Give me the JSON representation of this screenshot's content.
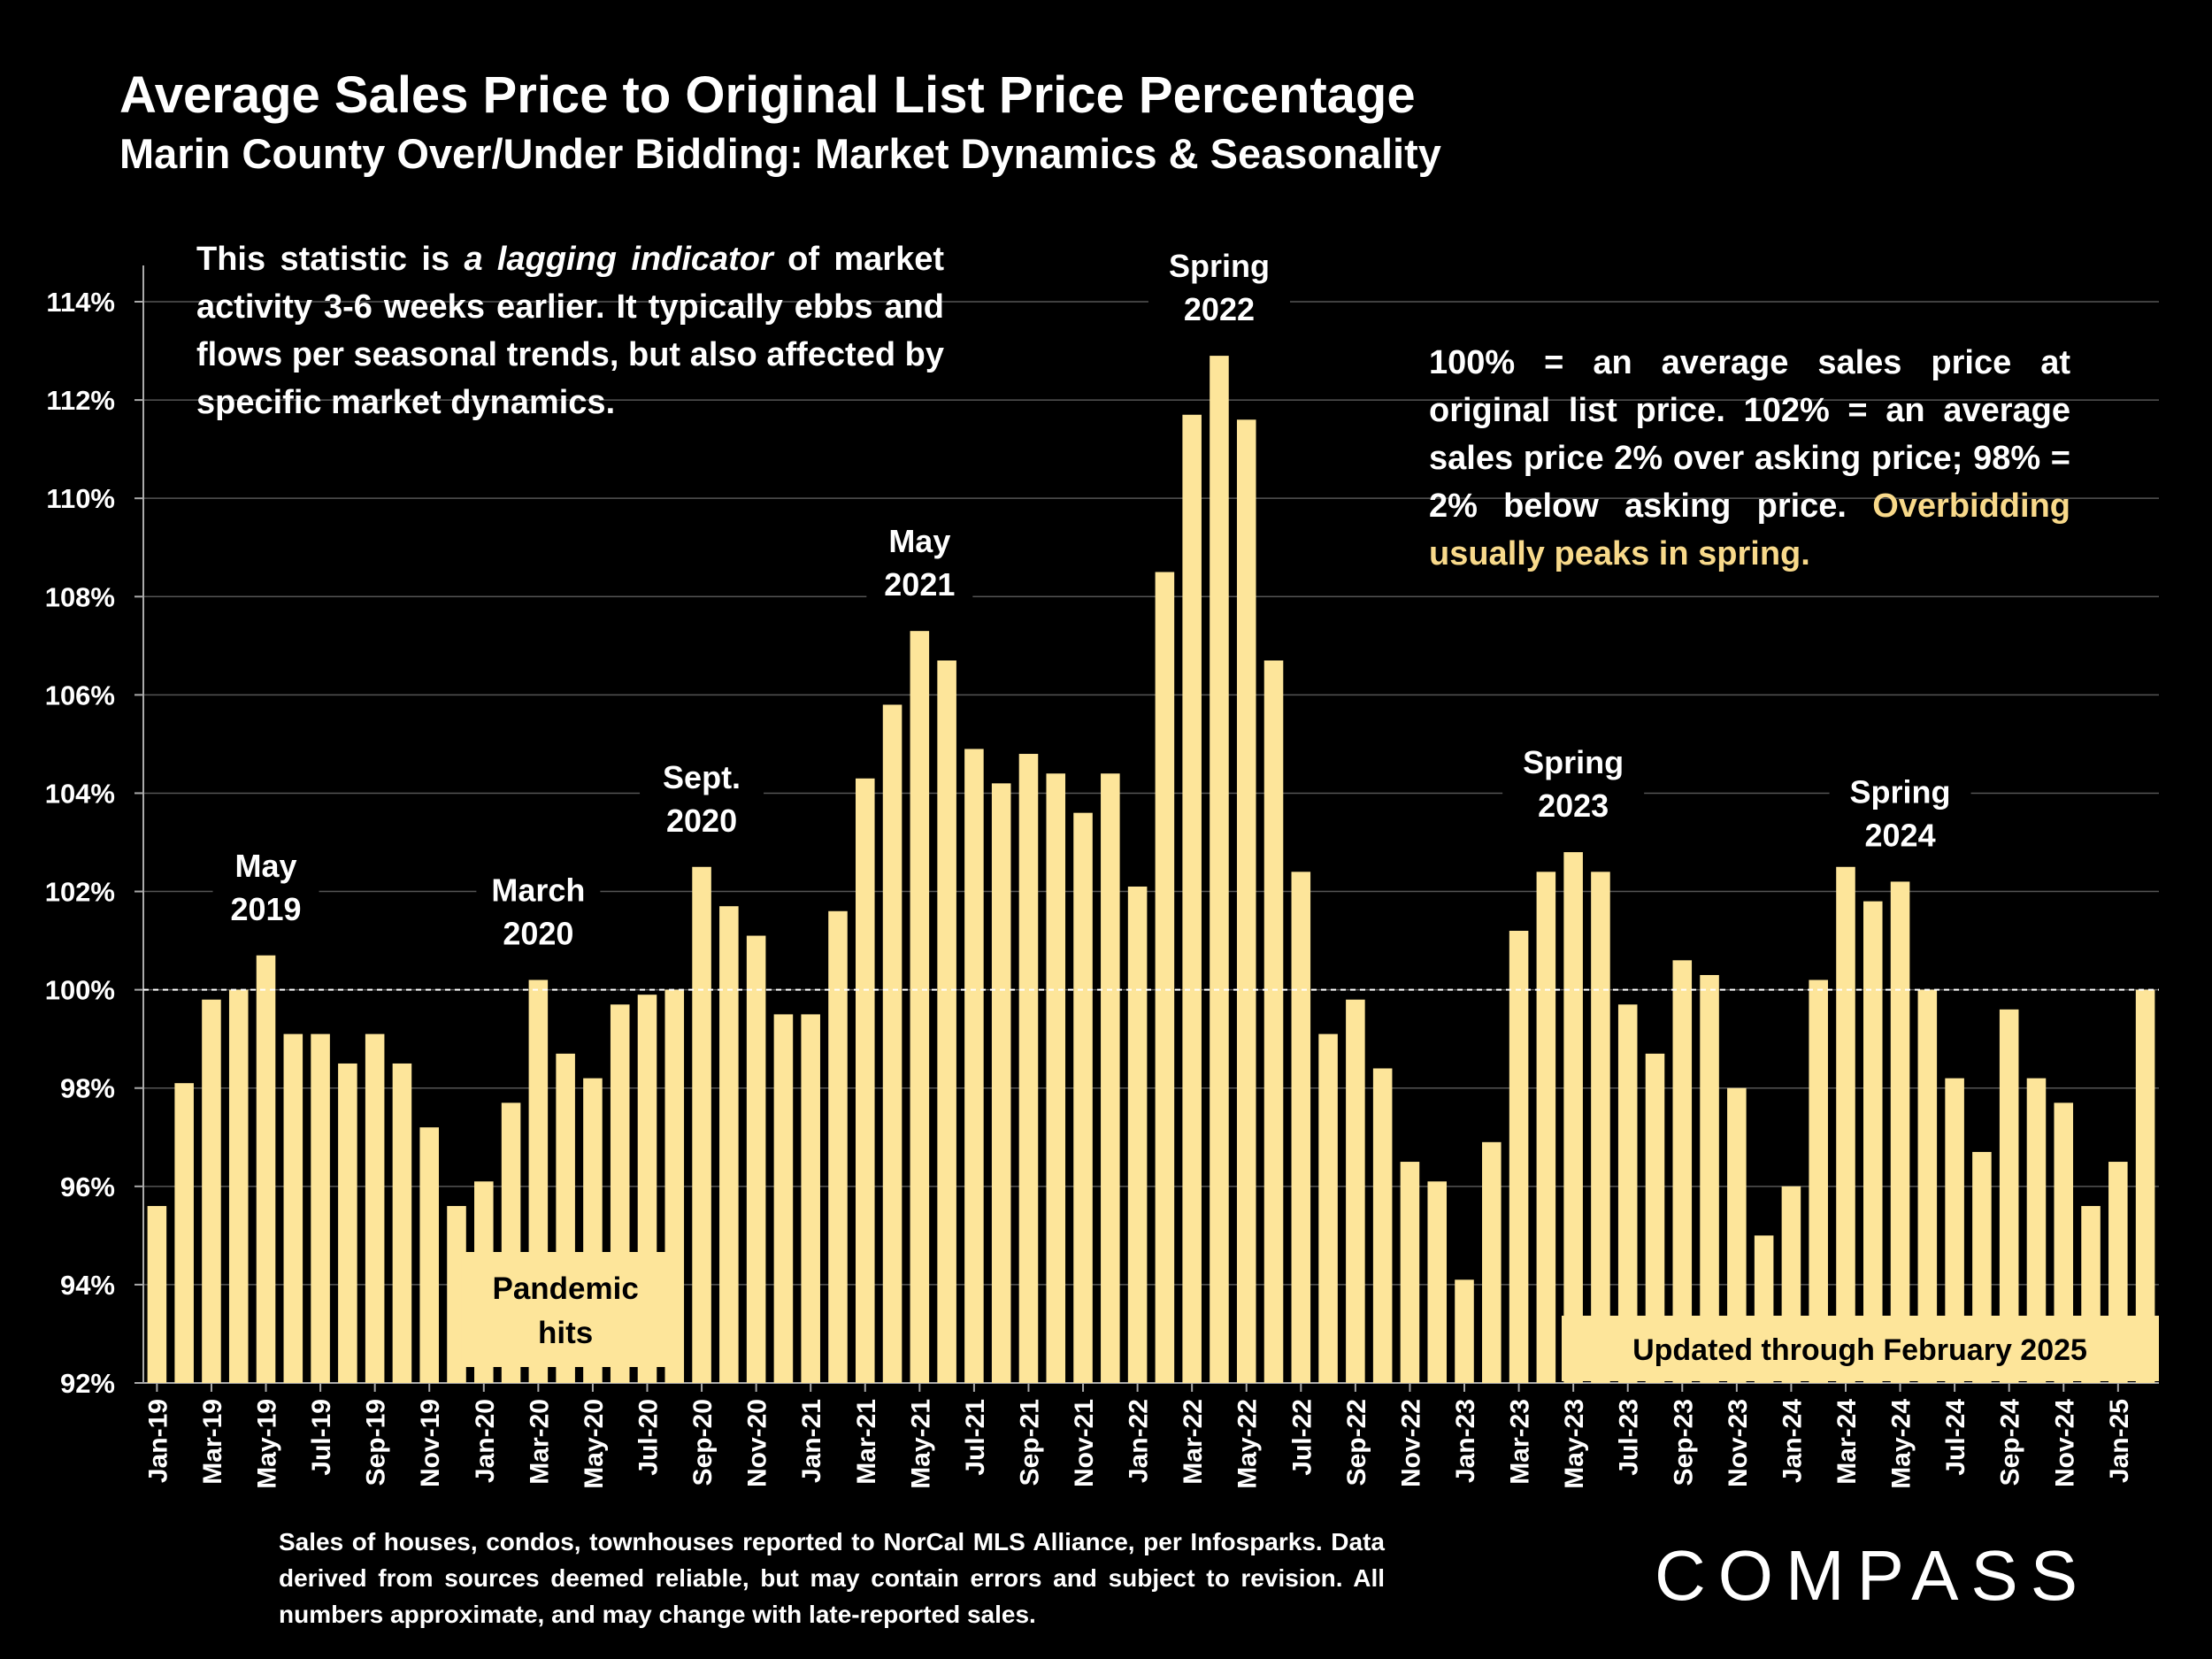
{
  "title": "Average Sales Price to Original List Price Percentage",
  "subtitle": "Marin County Over/Under Bidding: Market Dynamics & Seasonality",
  "notes": {
    "left_pre": "This statistic is ",
    "left_italic": "a lagging indicator",
    "left_post": " of market activity 3-6 weeks earlier. It typically ebbs and flows per seasonal trends, but also affected by specific market dynamics.",
    "right_main": "100% = an average sales price at original list price. 102% = an average sales price 2% over asking price; 98% = 2% below asking price. ",
    "right_highlight": "Overbidding usually peaks in spring."
  },
  "footer": "Sales of houses, condos, townhouses reported to NorCal MLS Alliance, per Infosparks. Data derived from sources deemed reliable, but may contain errors and subject to revision. All numbers approximate, and may change with late-reported sales.",
  "logo": "COMPASS",
  "colors": {
    "bar": "#fde59a",
    "highlight": "#f8d98a",
    "background": "#000000",
    "grid": "#555555"
  },
  "chart_data": {
    "type": "bar",
    "title": "Average Sales Price to Original List Price Percentage",
    "ylabel": "",
    "xlabel": "",
    "ylim": [
      92,
      114
    ],
    "yticks": [
      92,
      94,
      96,
      98,
      100,
      102,
      104,
      106,
      108,
      110,
      112,
      114
    ],
    "ytick_labels": [
      "92%",
      "94%",
      "96%",
      "98%",
      "100%",
      "102%",
      "104%",
      "106%",
      "108%",
      "110%",
      "112%",
      "114%"
    ],
    "reference_line": 100,
    "categories": [
      "Jan-19",
      "Feb-19",
      "Mar-19",
      "Apr-19",
      "May-19",
      "Jun-19",
      "Jul-19",
      "Aug-19",
      "Sep-19",
      "Oct-19",
      "Nov-19",
      "Dec-19",
      "Jan-20",
      "Feb-20",
      "Mar-20",
      "Apr-20",
      "May-20",
      "Jun-20",
      "Jul-20",
      "Aug-20",
      "Sep-20",
      "Oct-20",
      "Nov-20",
      "Dec-20",
      "Jan-21",
      "Feb-21",
      "Mar-21",
      "Apr-21",
      "May-21",
      "Jun-21",
      "Jul-21",
      "Aug-21",
      "Sep-21",
      "Oct-21",
      "Nov-21",
      "Dec-21",
      "Jan-22",
      "Feb-22",
      "Mar-22",
      "Apr-22",
      "May-22",
      "Jun-22",
      "Jul-22",
      "Aug-22",
      "Sep-22",
      "Oct-22",
      "Nov-22",
      "Dec-22",
      "Jan-23",
      "Feb-23",
      "Mar-23",
      "Apr-23",
      "May-23",
      "Jun-23",
      "Jul-23",
      "Aug-23",
      "Sep-23",
      "Oct-23",
      "Nov-23",
      "Dec-23",
      "Jan-24",
      "Feb-24",
      "Mar-24",
      "Apr-24",
      "May-24",
      "Jun-24",
      "Jul-24",
      "Aug-24",
      "Sep-24",
      "Oct-24",
      "Nov-24",
      "Dec-24",
      "Jan-25",
      "Feb-25"
    ],
    "tick_labels": [
      "Jan-19",
      "Mar-19",
      "May-19",
      "Jul-19",
      "Sep-19",
      "Nov-19",
      "Jan-20",
      "Mar-20",
      "May-20",
      "Jul-20",
      "Sep-20",
      "Nov-20",
      "Jan-21",
      "Mar-21",
      "May-21",
      "Jul-21",
      "Sep-21",
      "Nov-21",
      "Jan-22",
      "Mar-22",
      "May-22",
      "Jul-22",
      "Sep-22",
      "Nov-22",
      "Jan-23",
      "Mar-23",
      "May-23",
      "Jul-23",
      "Sep-23",
      "Nov-23",
      "Jan-24",
      "Mar-24",
      "May-24",
      "Jul-24",
      "Sep-24",
      "Nov-24",
      "Jan-25"
    ],
    "values": [
      95.6,
      98.1,
      99.8,
      100.0,
      100.7,
      99.1,
      99.1,
      98.5,
      99.1,
      98.5,
      97.2,
      95.6,
      96.1,
      97.7,
      100.2,
      98.7,
      98.2,
      99.7,
      99.9,
      100.0,
      102.5,
      101.7,
      101.1,
      99.5,
      99.5,
      101.6,
      104.3,
      105.8,
      107.3,
      106.7,
      104.9,
      104.2,
      104.8,
      104.4,
      103.6,
      104.4,
      102.1,
      108.5,
      111.7,
      112.9,
      111.6,
      106.7,
      102.4,
      99.1,
      99.8,
      98.4,
      96.5,
      96.1,
      94.1,
      96.9,
      101.2,
      102.4,
      102.8,
      102.4,
      99.7,
      98.7,
      100.6,
      100.3,
      98.0,
      95.0,
      96.0,
      100.2,
      102.5,
      101.8,
      102.2,
      100.0,
      98.2,
      96.7,
      99.6,
      98.2,
      97.7,
      95.6,
      96.5,
      100.0
    ],
    "annotations": [
      {
        "line1": "May",
        "line2": "2019",
        "index": 4
      },
      {
        "line1": "March",
        "line2": "2020",
        "index": 14
      },
      {
        "line1": "Sept.",
        "line2": "2020",
        "index": 20
      },
      {
        "line1": "May",
        "line2": "2021",
        "index": 28
      },
      {
        "line1": "Spring",
        "line2": "2022",
        "index": 39
      },
      {
        "line1": "Spring",
        "line2": "2023",
        "index": 52
      },
      {
        "line1": "Spring",
        "line2": "2024",
        "index": 64
      }
    ],
    "callouts": {
      "pandemic_line1": "Pandemic",
      "pandemic_line2": "hits",
      "updated": "Updated through February 2025"
    }
  }
}
